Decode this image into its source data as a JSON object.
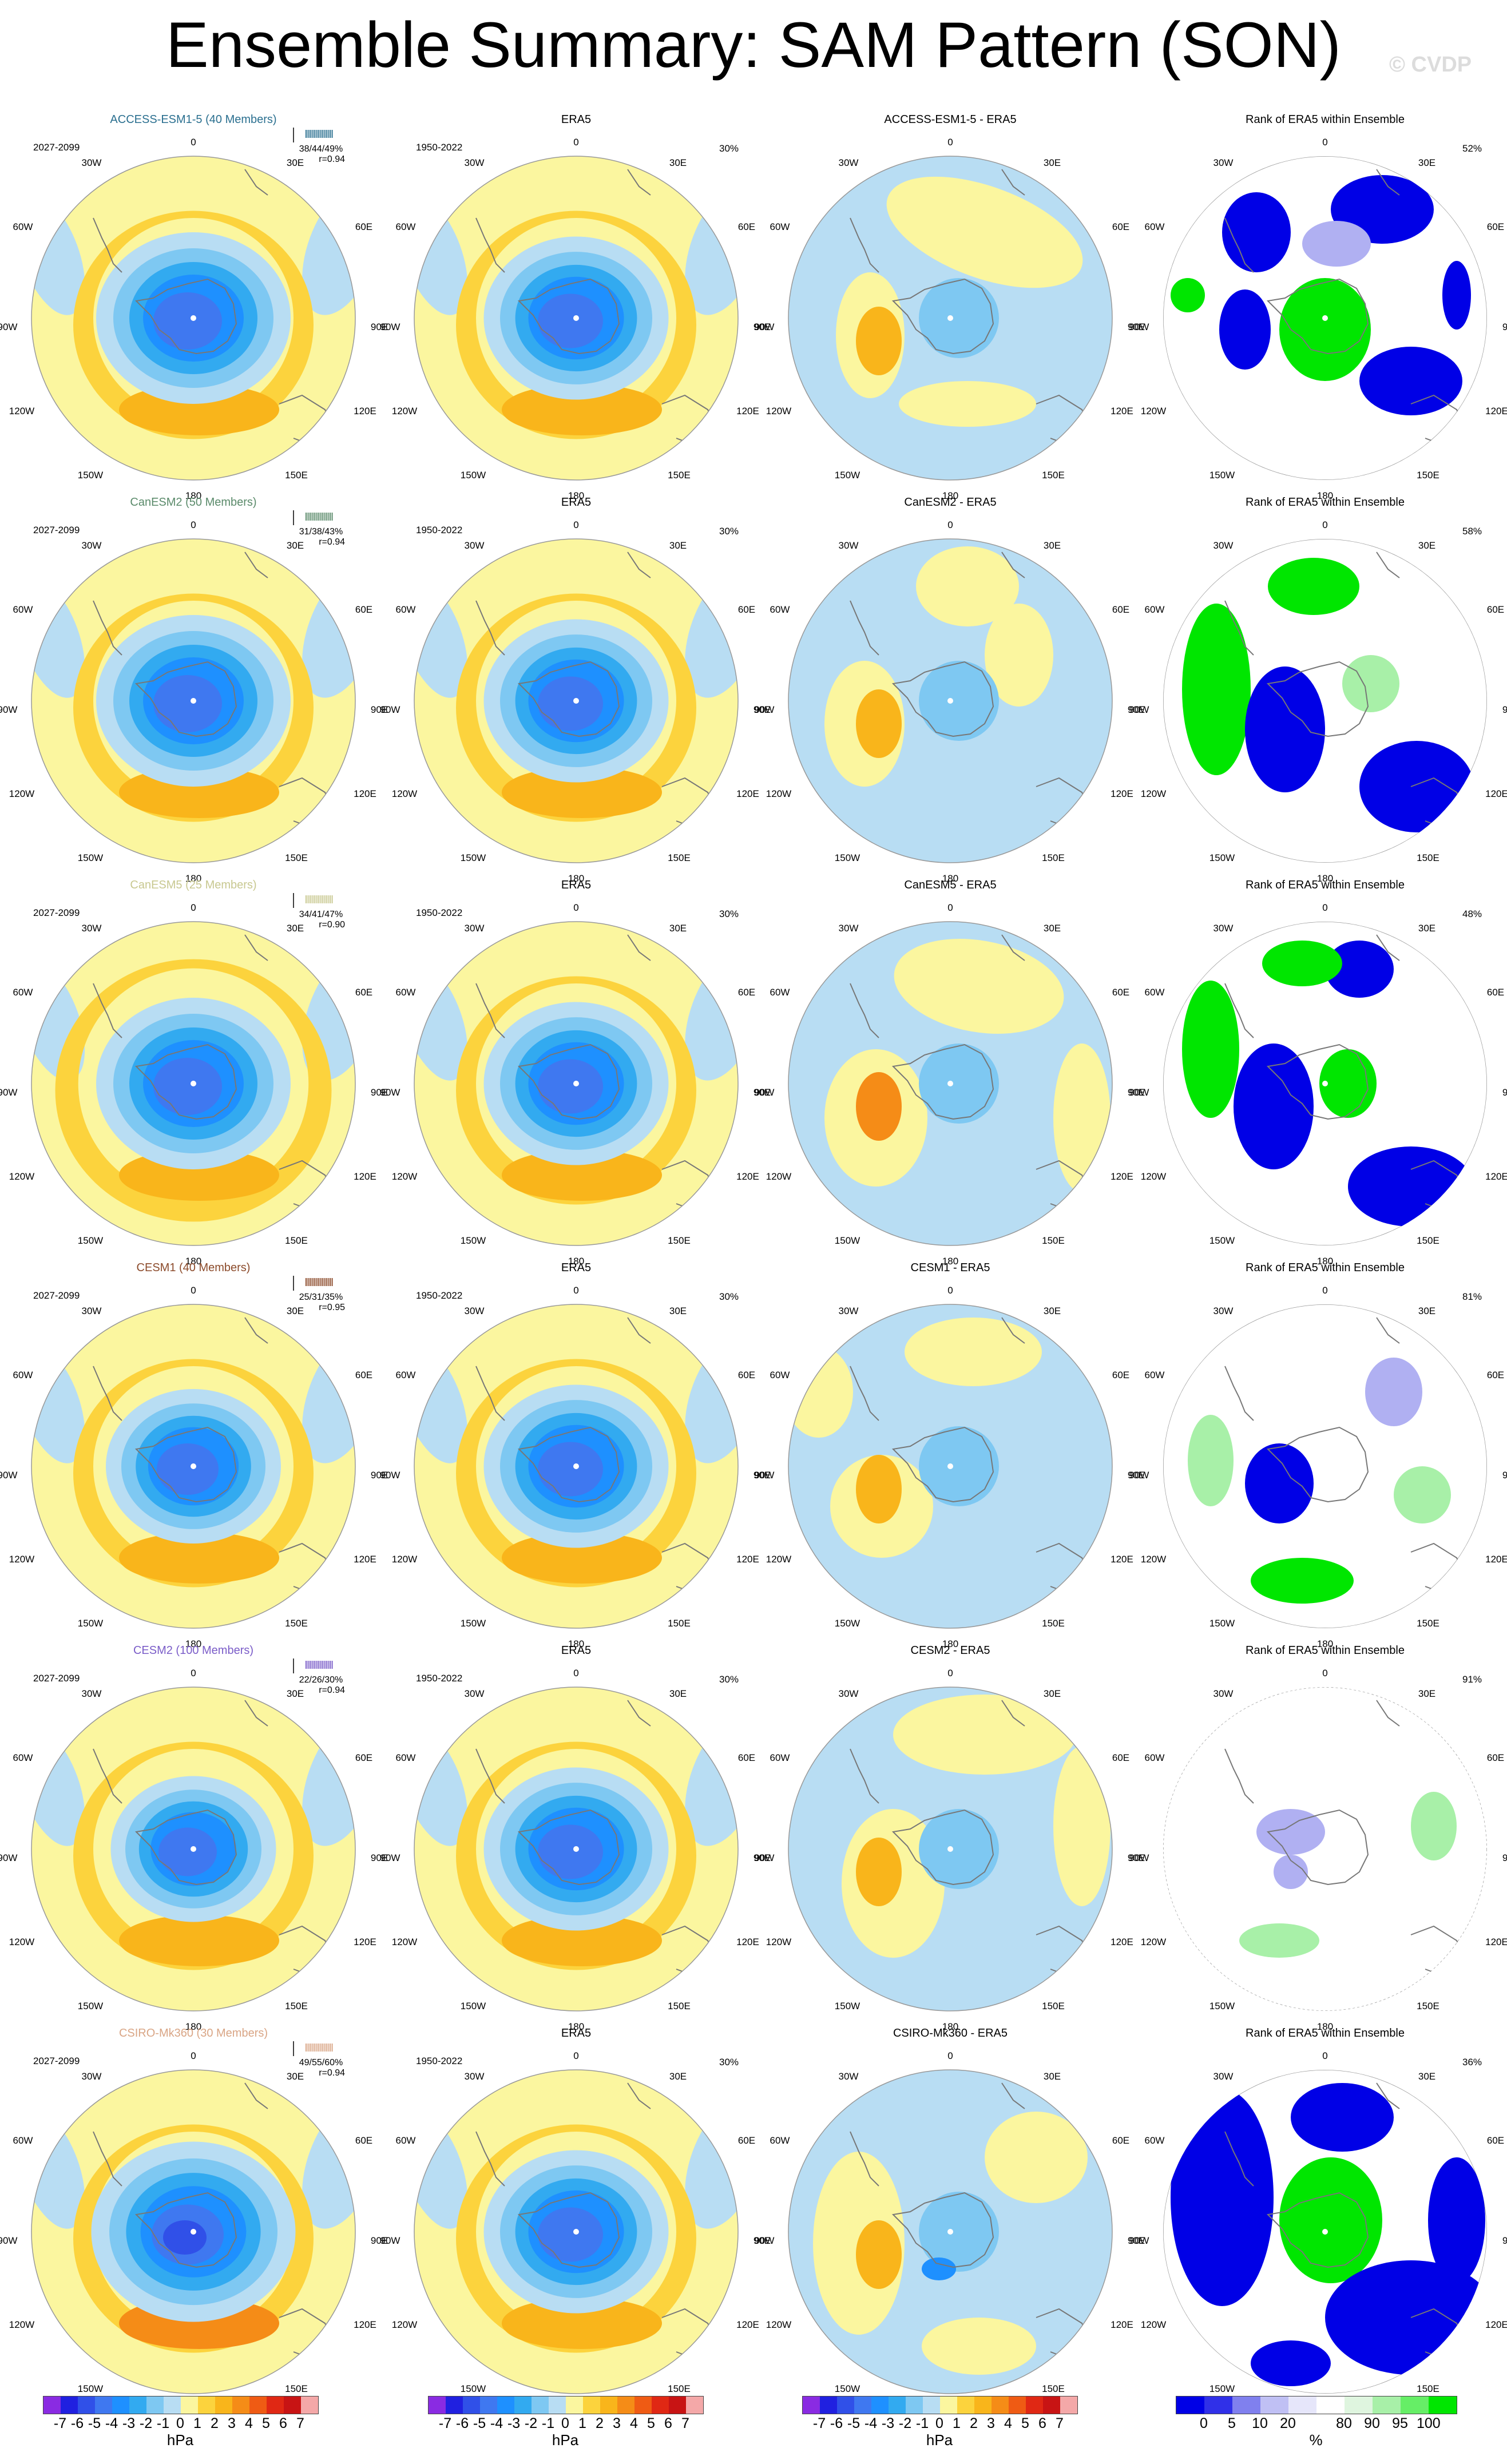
{
  "title": "Ensemble Summary: SAM Pattern (SON)",
  "watermark": "© CVDP",
  "col_titles": [
    "ERA5",
    "Rank of ERA5 within Ensemble"
  ],
  "obs_period": "1950-2022",
  "model_period": "2027-2099",
  "obs_pct": "30%",
  "lon_labels": [
    "0",
    "30E",
    "60E",
    "90E",
    "120E",
    "150E",
    "180",
    "150W",
    "120W",
    "90W",
    "60W",
    "30W"
  ],
  "rows": [
    {
      "model": "ACCESS-ESM1-5 (40 Members)",
      "diff": "ACCESS-ESM1-5 - ERA5",
      "stats": "38/44/49%",
      "r": "r=0.94",
      "rank_pct": "52%",
      "color": "#2a6f8f"
    },
    {
      "model": "CanESM2 (50 Members)",
      "diff": "CanESM2 - ERA5",
      "stats": "31/38/43%",
      "r": "r=0.94",
      "rank_pct": "58%",
      "color": "#5a8a6a"
    },
    {
      "model": "CanESM5 (25 Members)",
      "diff": "CanESM5 - ERA5",
      "stats": "34/41/47%",
      "r": "r=0.90",
      "rank_pct": "48%",
      "color": "#c8c890"
    },
    {
      "model": "CESM1 (40 Members)",
      "diff": "CESM1 - ERA5",
      "stats": "25/31/35%",
      "r": "r=0.95",
      "rank_pct": "81%",
      "color": "#8b4a2a"
    },
    {
      "model": "CESM2 (100 Members)",
      "diff": "CESM2 - ERA5",
      "stats": "22/26/30%",
      "r": "r=0.94",
      "rank_pct": "91%",
      "color": "#7a5cc8"
    },
    {
      "model": "CSIRO-Mk360 (30 Members)",
      "diff": "CSIRO-Mk360 - ERA5",
      "stats": "49/55/60%",
      "r": "r=0.94",
      "rank_pct": "36%",
      "color": "#d9a585"
    }
  ],
  "colorbar": {
    "unit": "hPa",
    "ticks": [
      "-7",
      "-6",
      "-5",
      "-4",
      "-3",
      "-2",
      "-1",
      "0",
      "1",
      "2",
      "3",
      "4",
      "5",
      "6",
      "7"
    ],
    "colors": [
      "#8a2be2",
      "#2020e0",
      "#3050e8",
      "#3f78f0",
      "#1e90ff",
      "#32aaf0",
      "#7ec8f2",
      "#b8ddf3",
      "#fbf69f",
      "#fcd33d",
      "#f9b51b",
      "#f58c17",
      "#ef5b14",
      "#e02814",
      "#c81414",
      "#f4a8a8"
    ]
  },
  "rank_colorbar": {
    "unit": "%",
    "ticks": [
      "0",
      "5",
      "10",
      "20",
      "80",
      "90",
      "95",
      "100"
    ],
    "colors": [
      "#0000e6",
      "#3030e8",
      "#8080ee",
      "#c0c0f4",
      "#e6e6fa",
      "#ffffff",
      "#dff5df",
      "#a8f0a8",
      "#66ee66",
      "#00e600"
    ]
  }
}
